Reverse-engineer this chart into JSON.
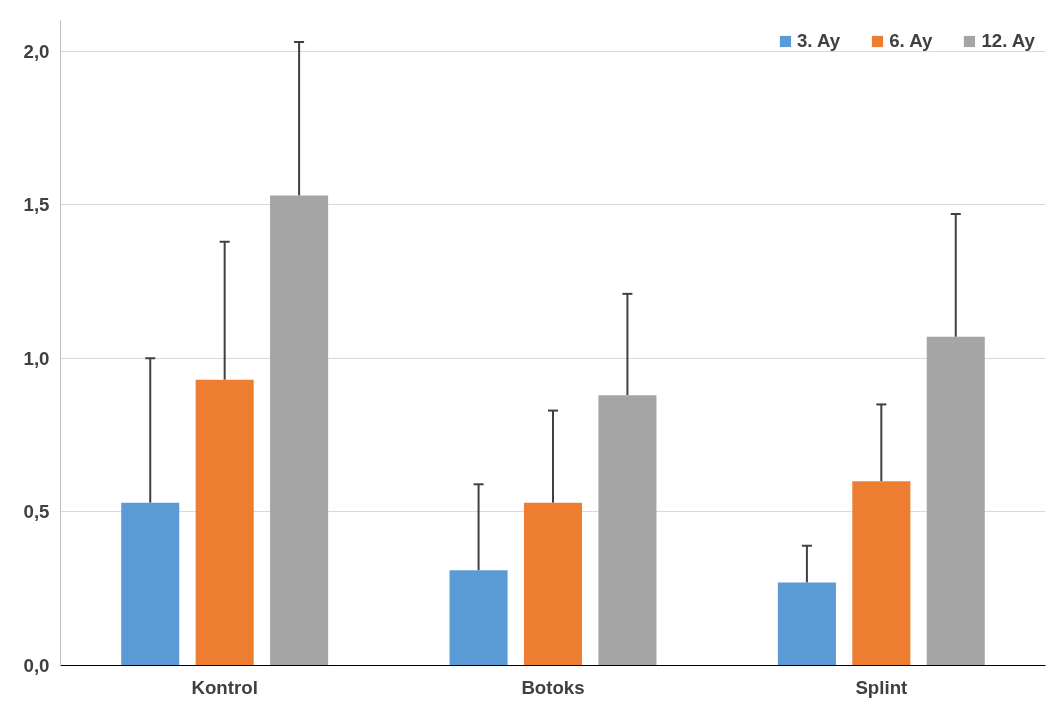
{
  "chart_data": {
    "type": "bar",
    "categories": [
      "Kontrol",
      "Botoks",
      "Splint"
    ],
    "series": [
      {
        "name": "3. Ay",
        "color": "#5b9bd5",
        "values": [
          0.53,
          0.31,
          0.27
        ],
        "errors": [
          [
            0.53,
            1.0
          ],
          [
            0.31,
            0.59
          ],
          [
            0.27,
            0.39
          ]
        ]
      },
      {
        "name": "6. Ay",
        "color": "#ed7d31",
        "values": [
          0.93,
          0.53,
          0.6
        ],
        "errors": [
          [
            0.93,
            1.38
          ],
          [
            0.53,
            0.83
          ],
          [
            0.6,
            0.85
          ]
        ]
      },
      {
        "name": "12. Ay",
        "color": "#a5a5a5",
        "values": [
          1.53,
          0.88,
          1.07
        ],
        "errors": [
          [
            1.53,
            2.03
          ],
          [
            0.88,
            1.21
          ],
          [
            1.07,
            1.47
          ]
        ]
      }
    ],
    "ylim": [
      0,
      2.1
    ],
    "yticks": [
      {
        "value": 0,
        "label": "0,0"
      },
      {
        "value": 0.5,
        "label": "0,5"
      },
      {
        "value": 1,
        "label": "1,0"
      },
      {
        "value": 1.5,
        "label": "1,5"
      },
      {
        "value": 2,
        "label": "2,0"
      }
    ],
    "grid": "y",
    "legend": "top right"
  }
}
